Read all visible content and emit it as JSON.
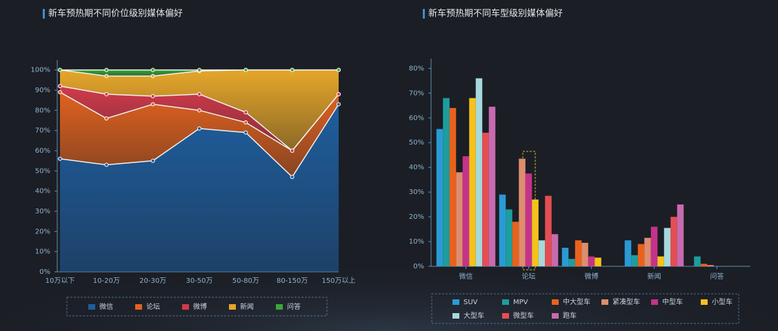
{
  "chart_data": [
    {
      "type": "area",
      "title": "新车预热期不同价位级别媒体偏好",
      "categories": [
        "10万以下",
        "10-20万",
        "20-30万",
        "30-50万",
        "50-80万",
        "80-150万",
        "150万以上"
      ],
      "series": [
        {
          "name": "微信",
          "color": "#1f5e9e",
          "values": [
            56,
            53,
            55,
            71,
            69,
            47,
            83
          ]
        },
        {
          "name": "论坛",
          "color": "#e0621f",
          "values": [
            33,
            23,
            28,
            9,
            5,
            13,
            5
          ]
        },
        {
          "name": "微博",
          "color": "#d13a4a",
          "values": [
            3,
            12,
            4,
            8,
            5,
            0,
            0
          ]
        },
        {
          "name": "新闻",
          "color": "#e6a62a",
          "values": [
            8,
            9,
            10,
            11.5,
            21,
            40,
            12
          ]
        },
        {
          "name": "问答",
          "color": "#3aa63a",
          "values": [
            0,
            3,
            3,
            0.5,
            0,
            0,
            0
          ]
        }
      ],
      "ylim": [
        0,
        105
      ],
      "yticks": [
        {
          "value": 0,
          "label": "0%"
        },
        {
          "value": 10,
          "label": "10%"
        },
        {
          "value": 20,
          "label": "20%"
        },
        {
          "value": 30,
          "label": "30%"
        },
        {
          "value": 40,
          "label": "40%"
        },
        {
          "value": 50,
          "label": "50%"
        },
        {
          "value": 60,
          "label": "60%"
        },
        {
          "value": 70,
          "label": "70%"
        },
        {
          "value": 80,
          "label": "80%"
        },
        {
          "value": 90,
          "label": "90%"
        },
        {
          "value": 100,
          "label": "100%"
        }
      ],
      "stacked": true,
      "legend": "bottom"
    },
    {
      "type": "bar",
      "title": "新车预热期不同车型级别媒体偏好",
      "categories": [
        "微信",
        "论坛",
        "微博",
        "新闻",
        "问答"
      ],
      "series": [
        {
          "name": "SUV",
          "color": "#2a9ad4",
          "values": [
            55.5,
            29,
            7.5,
            10.5,
            0
          ]
        },
        {
          "name": "MPV",
          "color": "#1c9e9e",
          "values": [
            68,
            23,
            3,
            4.5,
            4
          ]
        },
        {
          "name": "中大型车",
          "color": "#e8621e",
          "values": [
            64,
            18,
            10.5,
            9,
            1
          ]
        },
        {
          "name": "紧凑型车",
          "color": "#de8d6e",
          "values": [
            38,
            43.5,
            9.5,
            11.5,
            0.5
          ]
        },
        {
          "name": "中型车",
          "color": "#c4338a",
          "values": [
            44.5,
            37.5,
            4,
            16,
            0
          ]
        },
        {
          "name": "小型车",
          "color": "#f5c21a",
          "values": [
            68,
            27,
            3.5,
            4,
            0
          ]
        },
        {
          "name": "大型车",
          "color": "#a6d8dc",
          "values": [
            76,
            10.5,
            0,
            15.5,
            0
          ]
        },
        {
          "name": "微型车",
          "color": "#e44e52",
          "values": [
            54,
            28.5,
            0,
            20,
            0
          ]
        },
        {
          "name": "跑车",
          "color": "#c76aae",
          "values": [
            64.5,
            13,
            0,
            25,
            0
          ]
        }
      ],
      "ylim": [
        0,
        84
      ],
      "yticks": [
        {
          "value": 0,
          "label": "0%"
        },
        {
          "value": 10,
          "label": "10%"
        },
        {
          "value": 20,
          "label": "20%"
        },
        {
          "value": 30,
          "label": "30%"
        },
        {
          "value": 40,
          "label": "40%"
        },
        {
          "value": 50,
          "label": "50%"
        },
        {
          "value": 60,
          "label": "60%"
        },
        {
          "value": 70,
          "label": "70%"
        },
        {
          "value": 80,
          "label": "80%"
        }
      ],
      "legend": "bottom"
    }
  ]
}
